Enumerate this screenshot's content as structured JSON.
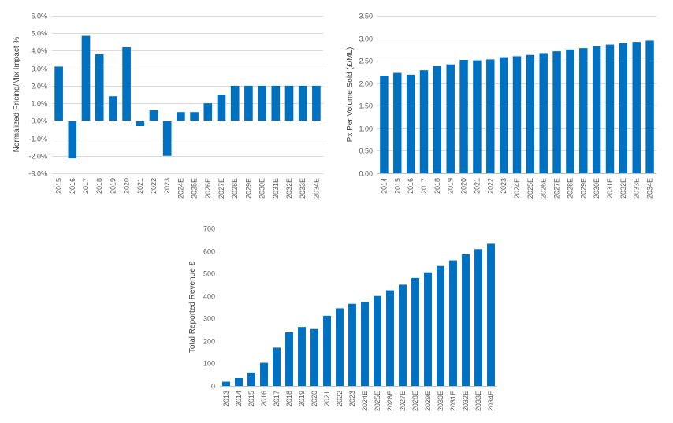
{
  "chart_data": [
    {
      "type": "bar",
      "title": "",
      "xlabel": "",
      "ylabel": "Normalized Pricing/Mix Impact %",
      "ylim": [
        -3.0,
        6.0
      ],
      "grid": true,
      "color": "#0070c0",
      "categories": [
        "2015",
        "2016",
        "2017",
        "2018",
        "2019",
        "2020",
        "2021",
        "2022",
        "2023",
        "2024E",
        "2025E",
        "2026E",
        "2027E",
        "2028E",
        "2029E",
        "2030E",
        "2031E",
        "2032E",
        "2033E",
        "2034E"
      ],
      "values": [
        3.1,
        -2.15,
        4.85,
        3.8,
        1.4,
        4.2,
        -0.3,
        0.6,
        -2.0,
        0.5,
        0.5,
        1.0,
        1.5,
        2.0,
        2.0,
        2.0,
        2.0,
        2.0,
        2.0,
        2.0
      ],
      "yticks": [
        "-3.0%",
        "-2.0%",
        "-1.0%",
        "0.0%",
        "1.0%",
        "2.0%",
        "3.0%",
        "4.0%",
        "5.0%",
        "6.0%"
      ]
    },
    {
      "type": "bar",
      "title": "",
      "xlabel": "",
      "ylabel": "Px Per Volume Sold (£/ML)",
      "ylim": [
        0.0,
        3.5
      ],
      "grid": true,
      "color": "#0070c0",
      "categories": [
        "2014",
        "2015",
        "2016",
        "2017",
        "2018",
        "2019",
        "2020",
        "2021",
        "2022",
        "2023",
        "2024E",
        "2025E",
        "2026E",
        "2027E",
        "2028E",
        "2029E",
        "2030E",
        "2031E",
        "2032E",
        "2033E",
        "2034E"
      ],
      "values": [
        2.17,
        2.23,
        2.19,
        2.29,
        2.38,
        2.42,
        2.52,
        2.51,
        2.53,
        2.58,
        2.6,
        2.63,
        2.67,
        2.71,
        2.75,
        2.78,
        2.82,
        2.86,
        2.89,
        2.92,
        2.95
      ],
      "yticks": [
        "0.00",
        "0.50",
        "1.00",
        "1.50",
        "2.00",
        "2.50",
        "3.00",
        "3.50"
      ]
    },
    {
      "type": "bar",
      "title": "",
      "xlabel": "",
      "ylabel": "Total Reported Revenue £",
      "ylim": [
        0,
        700
      ],
      "grid": false,
      "color": "#0070c0",
      "categories": [
        "2013",
        "2014",
        "2015",
        "2016",
        "2017",
        "2018",
        "2019",
        "2020",
        "2021",
        "2022",
        "2023",
        "2024E",
        "2025E",
        "2026E",
        "2027E",
        "2028E",
        "2029E",
        "2030E",
        "2031E",
        "2032E",
        "2033E",
        "2034E"
      ],
      "values": [
        19,
        35,
        60,
        103,
        170,
        238,
        262,
        253,
        312,
        345,
        365,
        373,
        400,
        425,
        450,
        480,
        505,
        533,
        558,
        585,
        608,
        632
      ],
      "yticks": [
        "0",
        "100",
        "200",
        "300",
        "400",
        "500",
        "600",
        "700"
      ]
    }
  ]
}
